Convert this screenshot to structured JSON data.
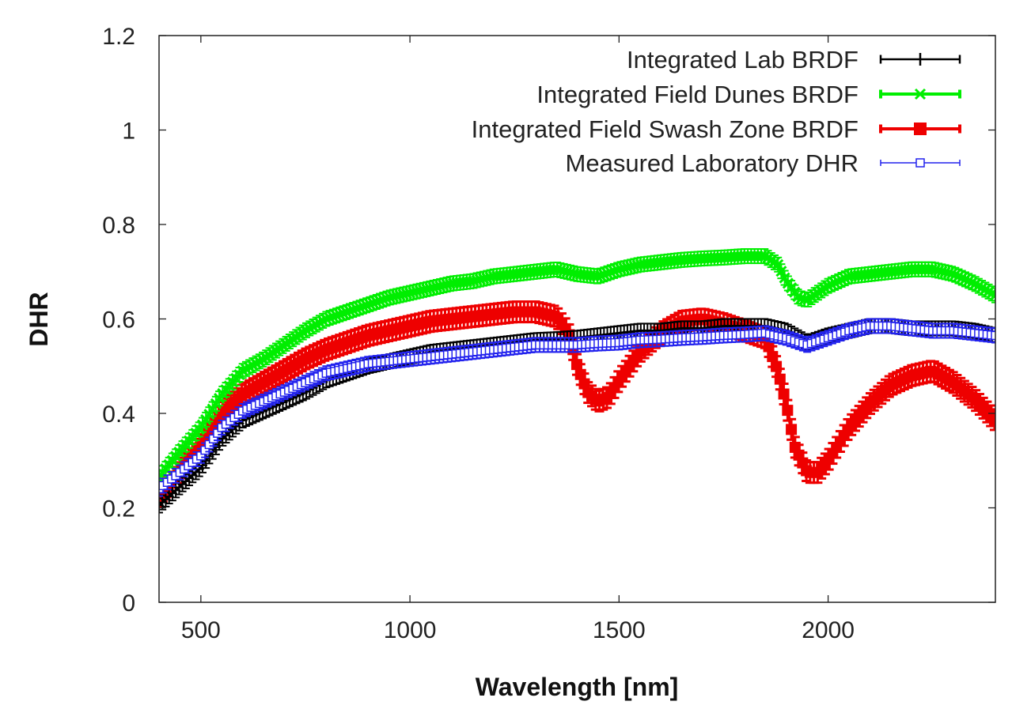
{
  "chart_data": {
    "type": "line",
    "title": "",
    "xlabel": "Wavelength [nm]",
    "ylabel": "DHR",
    "xlim": [
      400,
      2400
    ],
    "ylim": [
      0,
      1.2
    ],
    "xticks": [
      500,
      1000,
      1500,
      2000
    ],
    "yticks": [
      0,
      0.2,
      0.4,
      0.6,
      0.8,
      1,
      1.2
    ],
    "ytick_labels": [
      "0",
      "0.2",
      "0.4",
      "0.6",
      "0.8",
      "1",
      "1.2"
    ],
    "grid": false,
    "legend_position": "top-right",
    "series": [
      {
        "name": "Integrated Lab BRDF",
        "color": "#000000",
        "marker": "plus-errorbar",
        "points": [
          [
            400,
            0.205
          ],
          [
            450,
            0.245
          ],
          [
            500,
            0.285
          ],
          [
            550,
            0.345
          ],
          [
            600,
            0.385
          ],
          [
            650,
            0.405
          ],
          [
            700,
            0.425
          ],
          [
            750,
            0.445
          ],
          [
            800,
            0.47
          ],
          [
            850,
            0.485
          ],
          [
            900,
            0.5
          ],
          [
            950,
            0.51
          ],
          [
            1000,
            0.52
          ],
          [
            1050,
            0.53
          ],
          [
            1100,
            0.535
          ],
          [
            1150,
            0.54
          ],
          [
            1200,
            0.545
          ],
          [
            1250,
            0.55
          ],
          [
            1300,
            0.555
          ],
          [
            1350,
            0.557
          ],
          [
            1400,
            0.56
          ],
          [
            1450,
            0.565
          ],
          [
            1500,
            0.57
          ],
          [
            1550,
            0.575
          ],
          [
            1600,
            0.575
          ],
          [
            1650,
            0.58
          ],
          [
            1700,
            0.58
          ],
          [
            1750,
            0.585
          ],
          [
            1800,
            0.585
          ],
          [
            1850,
            0.585
          ],
          [
            1900,
            0.575
          ],
          [
            1950,
            0.55
          ],
          [
            2000,
            0.565
          ],
          [
            2050,
            0.575
          ],
          [
            2100,
            0.585
          ],
          [
            2150,
            0.585
          ],
          [
            2200,
            0.58
          ],
          [
            2250,
            0.58
          ],
          [
            2300,
            0.58
          ],
          [
            2350,
            0.575
          ],
          [
            2400,
            0.565
          ]
        ]
      },
      {
        "name": "Integrated Field Dunes BRDF",
        "color": "#00ee00",
        "marker": "x-errorbar",
        "points": [
          [
            400,
            0.265
          ],
          [
            450,
            0.32
          ],
          [
            500,
            0.37
          ],
          [
            550,
            0.44
          ],
          [
            600,
            0.49
          ],
          [
            650,
            0.515
          ],
          [
            700,
            0.545
          ],
          [
            750,
            0.575
          ],
          [
            800,
            0.6
          ],
          [
            850,
            0.615
          ],
          [
            900,
            0.63
          ],
          [
            950,
            0.645
          ],
          [
            1000,
            0.655
          ],
          [
            1050,
            0.665
          ],
          [
            1100,
            0.675
          ],
          [
            1150,
            0.68
          ],
          [
            1200,
            0.69
          ],
          [
            1250,
            0.695
          ],
          [
            1300,
            0.7
          ],
          [
            1350,
            0.705
          ],
          [
            1400,
            0.695
          ],
          [
            1450,
            0.69
          ],
          [
            1500,
            0.705
          ],
          [
            1550,
            0.715
          ],
          [
            1600,
            0.72
          ],
          [
            1650,
            0.725
          ],
          [
            1700,
            0.728
          ],
          [
            1750,
            0.73
          ],
          [
            1800,
            0.733
          ],
          [
            1850,
            0.733
          ],
          [
            1880,
            0.715
          ],
          [
            1900,
            0.68
          ],
          [
            1930,
            0.645
          ],
          [
            1950,
            0.64
          ],
          [
            2000,
            0.67
          ],
          [
            2050,
            0.69
          ],
          [
            2100,
            0.695
          ],
          [
            2150,
            0.7
          ],
          [
            2200,
            0.705
          ],
          [
            2250,
            0.705
          ],
          [
            2300,
            0.695
          ],
          [
            2350,
            0.675
          ],
          [
            2400,
            0.65
          ]
        ]
      },
      {
        "name": "Integrated Field Swash Zone BRDF",
        "color": "#ee0000",
        "marker": "filled-square-errorbar",
        "points": [
          [
            400,
            0.225
          ],
          [
            450,
            0.28
          ],
          [
            500,
            0.335
          ],
          [
            550,
            0.4
          ],
          [
            600,
            0.44
          ],
          [
            650,
            0.465
          ],
          [
            700,
            0.49
          ],
          [
            750,
            0.515
          ],
          [
            800,
            0.535
          ],
          [
            850,
            0.55
          ],
          [
            900,
            0.565
          ],
          [
            950,
            0.575
          ],
          [
            1000,
            0.585
          ],
          [
            1050,
            0.595
          ],
          [
            1100,
            0.6
          ],
          [
            1150,
            0.605
          ],
          [
            1200,
            0.61
          ],
          [
            1250,
            0.615
          ],
          [
            1300,
            0.615
          ],
          [
            1350,
            0.605
          ],
          [
            1380,
            0.57
          ],
          [
            1400,
            0.5
          ],
          [
            1425,
            0.445
          ],
          [
            1450,
            0.425
          ],
          [
            1475,
            0.435
          ],
          [
            1500,
            0.47
          ],
          [
            1550,
            0.53
          ],
          [
            1600,
            0.57
          ],
          [
            1650,
            0.595
          ],
          [
            1700,
            0.6
          ],
          [
            1750,
            0.59
          ],
          [
            1800,
            0.575
          ],
          [
            1850,
            0.56
          ],
          [
            1880,
            0.49
          ],
          [
            1900,
            0.42
          ],
          [
            1920,
            0.33
          ],
          [
            1950,
            0.275
          ],
          [
            1975,
            0.275
          ],
          [
            2000,
            0.3
          ],
          [
            2050,
            0.37
          ],
          [
            2100,
            0.42
          ],
          [
            2150,
            0.46
          ],
          [
            2200,
            0.48
          ],
          [
            2250,
            0.49
          ],
          [
            2300,
            0.465
          ],
          [
            2350,
            0.43
          ],
          [
            2400,
            0.385
          ]
        ]
      },
      {
        "name": "Measured Laboratory DHR",
        "color": "#2222ee",
        "marker": "open-square-errorbar",
        "points": [
          [
            400,
            0.24
          ],
          [
            450,
            0.275
          ],
          [
            500,
            0.31
          ],
          [
            550,
            0.37
          ],
          [
            600,
            0.405
          ],
          [
            650,
            0.425
          ],
          [
            700,
            0.445
          ],
          [
            750,
            0.465
          ],
          [
            800,
            0.485
          ],
          [
            850,
            0.495
          ],
          [
            900,
            0.505
          ],
          [
            950,
            0.51
          ],
          [
            1000,
            0.515
          ],
          [
            1050,
            0.52
          ],
          [
            1100,
            0.525
          ],
          [
            1150,
            0.53
          ],
          [
            1200,
            0.535
          ],
          [
            1250,
            0.54
          ],
          [
            1300,
            0.545
          ],
          [
            1350,
            0.545
          ],
          [
            1400,
            0.545
          ],
          [
            1450,
            0.548
          ],
          [
            1500,
            0.55
          ],
          [
            1550,
            0.555
          ],
          [
            1600,
            0.557
          ],
          [
            1650,
            0.56
          ],
          [
            1700,
            0.562
          ],
          [
            1750,
            0.565
          ],
          [
            1800,
            0.567
          ],
          [
            1850,
            0.57
          ],
          [
            1900,
            0.56
          ],
          [
            1950,
            0.545
          ],
          [
            2000,
            0.56
          ],
          [
            2050,
            0.575
          ],
          [
            2100,
            0.585
          ],
          [
            2150,
            0.585
          ],
          [
            2200,
            0.58
          ],
          [
            2250,
            0.575
          ],
          [
            2300,
            0.575
          ],
          [
            2350,
            0.57
          ],
          [
            2400,
            0.565
          ]
        ]
      }
    ]
  }
}
